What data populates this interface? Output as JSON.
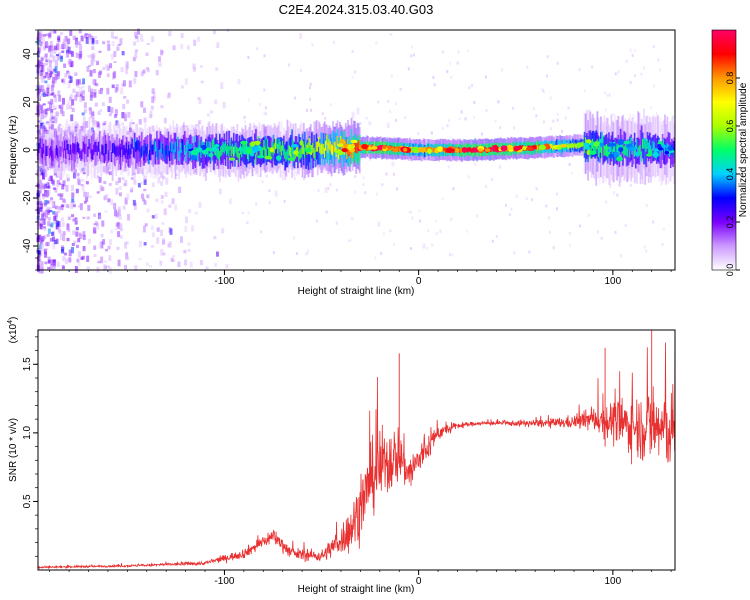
{
  "title": "C2E4.2024.315.03.40.G03",
  "chart_data": [
    {
      "type": "heatmap",
      "xlabel": "Height of straight line (km)",
      "ylabel": "Frequency (Hz)",
      "xlim": [
        -196,
        132
      ],
      "ylim": [
        -50,
        50
      ],
      "x_ticks": [
        -100,
        0,
        100
      ],
      "x_tick_labels": [
        "-100",
        "0",
        "100"
      ],
      "y_ticks": [
        -40,
        -20,
        0,
        20,
        40
      ],
      "y_tick_labels": [
        "-40",
        "-20",
        "0",
        "20",
        "40"
      ],
      "colorbar": {
        "label": "Normalized spectral amplitude",
        "range": [
          0,
          1
        ],
        "ticks": [
          0.0,
          0.2,
          0.4,
          0.6,
          0.8
        ],
        "tick_labels": [
          "0.0",
          "0.2",
          "0.4",
          "0.6",
          "0.8"
        ],
        "colormap": [
          "#ffffff",
          "#cc99ff",
          "#7a00ff",
          "#0000ff",
          "#00d2ff",
          "#00ff66",
          "#aaff00",
          "#ffff00",
          "#ff9900",
          "#ff0000",
          "#ff0066"
        ]
      },
      "ridge": {
        "description_points_x": [
          -196,
          -160,
          -120,
          -90,
          -60,
          -35,
          -20,
          0,
          30,
          60,
          85,
          100,
          120,
          132
        ],
        "center_hz": [
          0,
          0,
          0,
          0,
          0,
          1,
          1,
          0,
          0,
          1,
          2,
          0,
          1,
          0
        ],
        "amplitude": [
          0.2,
          0.22,
          0.4,
          0.5,
          0.55,
          0.8,
          0.95,
          0.7,
          0.95,
          0.85,
          0.55,
          0.45,
          0.45,
          0.35
        ]
      }
    },
    {
      "type": "line",
      "xlabel": "Height of straight line (km)",
      "ylabel": "SNR (10 * v/v)",
      "y_multiplier_label": "(x10^4)",
      "xlim": [
        -196,
        132
      ],
      "ylim": [
        0,
        1.75
      ],
      "x_ticks": [
        -100,
        0,
        100
      ],
      "x_tick_labels": [
        "-100",
        "0",
        "100"
      ],
      "y_ticks": [
        0.5,
        1.0,
        1.5
      ],
      "y_tick_labels": [
        "0.5",
        "1.0",
        "1.5"
      ],
      "color": "#e83030",
      "envelope": {
        "x": [
          -196,
          -150,
          -110,
          -90,
          -75,
          -65,
          -50,
          -40,
          -35,
          -30,
          -25,
          -20,
          -15,
          -10,
          -5,
          0,
          10,
          20,
          30,
          40,
          50,
          60,
          70,
          80,
          90,
          100,
          110,
          120,
          132
        ],
        "y": [
          0.02,
          0.03,
          0.05,
          0.12,
          0.25,
          0.12,
          0.1,
          0.22,
          0.3,
          0.45,
          0.65,
          0.75,
          0.8,
          0.85,
          0.7,
          0.8,
          1.0,
          1.05,
          1.07,
          1.07,
          1.07,
          1.07,
          1.07,
          1.08,
          1.1,
          1.08,
          1.05,
          1.05,
          1.0
        ],
        "noise": [
          0.01,
          0.01,
          0.02,
          0.05,
          0.08,
          0.06,
          0.06,
          0.15,
          0.25,
          0.3,
          0.35,
          0.4,
          0.35,
          0.3,
          0.2,
          0.2,
          0.08,
          0.03,
          0.02,
          0.02,
          0.03,
          0.04,
          0.05,
          0.07,
          0.12,
          0.22,
          0.3,
          0.4,
          0.4
        ]
      },
      "spikes": [
        {
          "x": -10,
          "y": 1.58
        },
        {
          "x": 96,
          "y": 1.62
        },
        {
          "x": 120,
          "y": 1.75
        }
      ]
    }
  ]
}
